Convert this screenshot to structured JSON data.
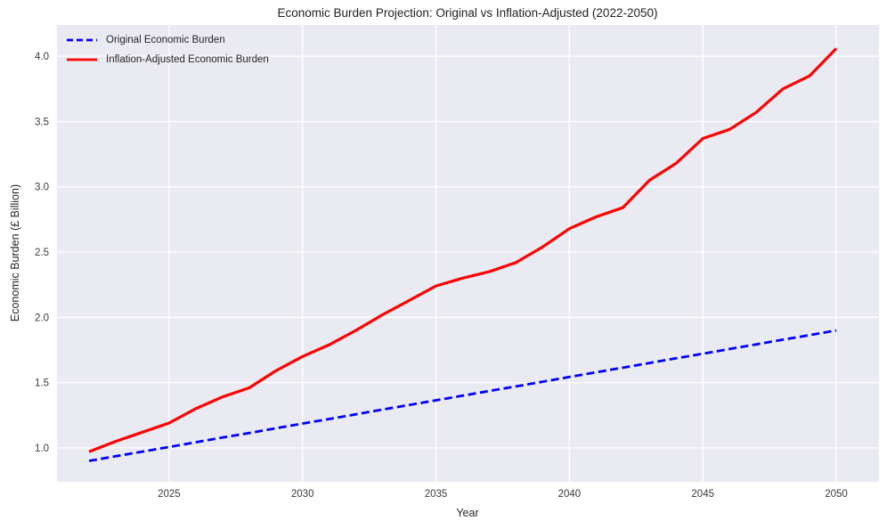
{
  "chart_data": {
    "type": "line",
    "title": "Economic Burden Projection: Original vs Inflation-Adjusted (2022-2050)",
    "xlabel": "Year",
    "ylabel": "Economic Burden (£ Billion)",
    "x": [
      2022,
      2023,
      2024,
      2025,
      2026,
      2027,
      2028,
      2029,
      2030,
      2031,
      2032,
      2033,
      2034,
      2035,
      2036,
      2037,
      2038,
      2039,
      2040,
      2041,
      2042,
      2043,
      2044,
      2045,
      2046,
      2047,
      2048,
      2049,
      2050
    ],
    "series": [
      {
        "id": "original",
        "name": "Original Economic Burden",
        "color": "#0000ff",
        "style": "dashed",
        "width": 2.8,
        "values": [
          0.9,
          0.936,
          0.971,
          1.007,
          1.043,
          1.079,
          1.114,
          1.15,
          1.186,
          1.221,
          1.257,
          1.293,
          1.329,
          1.364,
          1.4,
          1.436,
          1.471,
          1.507,
          1.543,
          1.579,
          1.614,
          1.65,
          1.686,
          1.721,
          1.757,
          1.793,
          1.829,
          1.864,
          1.9
        ]
      },
      {
        "id": "inflation-adjusted",
        "name": "Inflation-Adjusted Economic Burden",
        "color": "#ff0000",
        "style": "solid",
        "width": 3.2,
        "values": [
          0.97,
          1.05,
          1.12,
          1.19,
          1.3,
          1.39,
          1.46,
          1.59,
          1.7,
          1.79,
          1.9,
          2.02,
          2.13,
          2.24,
          2.3,
          2.35,
          2.42,
          2.54,
          2.68,
          2.77,
          2.84,
          3.05,
          3.18,
          3.37,
          3.44,
          3.57,
          3.75,
          3.85,
          4.06
        ]
      }
    ],
    "xticks": [
      2025,
      2030,
      2035,
      2040,
      2045,
      2050
    ],
    "yticks": [
      1.0,
      1.5,
      2.0,
      2.5,
      3.0,
      3.5,
      4.0
    ],
    "xlim": [
      2020.8,
      2051.6
    ],
    "ylim": [
      0.74,
      4.24
    ],
    "grid": true,
    "legend_position": "upper left",
    "plot_bg": "#eaeaf2",
    "grid_color": "#ffffff",
    "text_color": "#262626"
  },
  "legend": {
    "items": [
      {
        "label": "Original Economic Burden",
        "color": "#0000ff",
        "style": "dashed"
      },
      {
        "label": "Inflation-Adjusted Economic Burden",
        "color": "#ff0000",
        "style": "solid"
      }
    ]
  }
}
